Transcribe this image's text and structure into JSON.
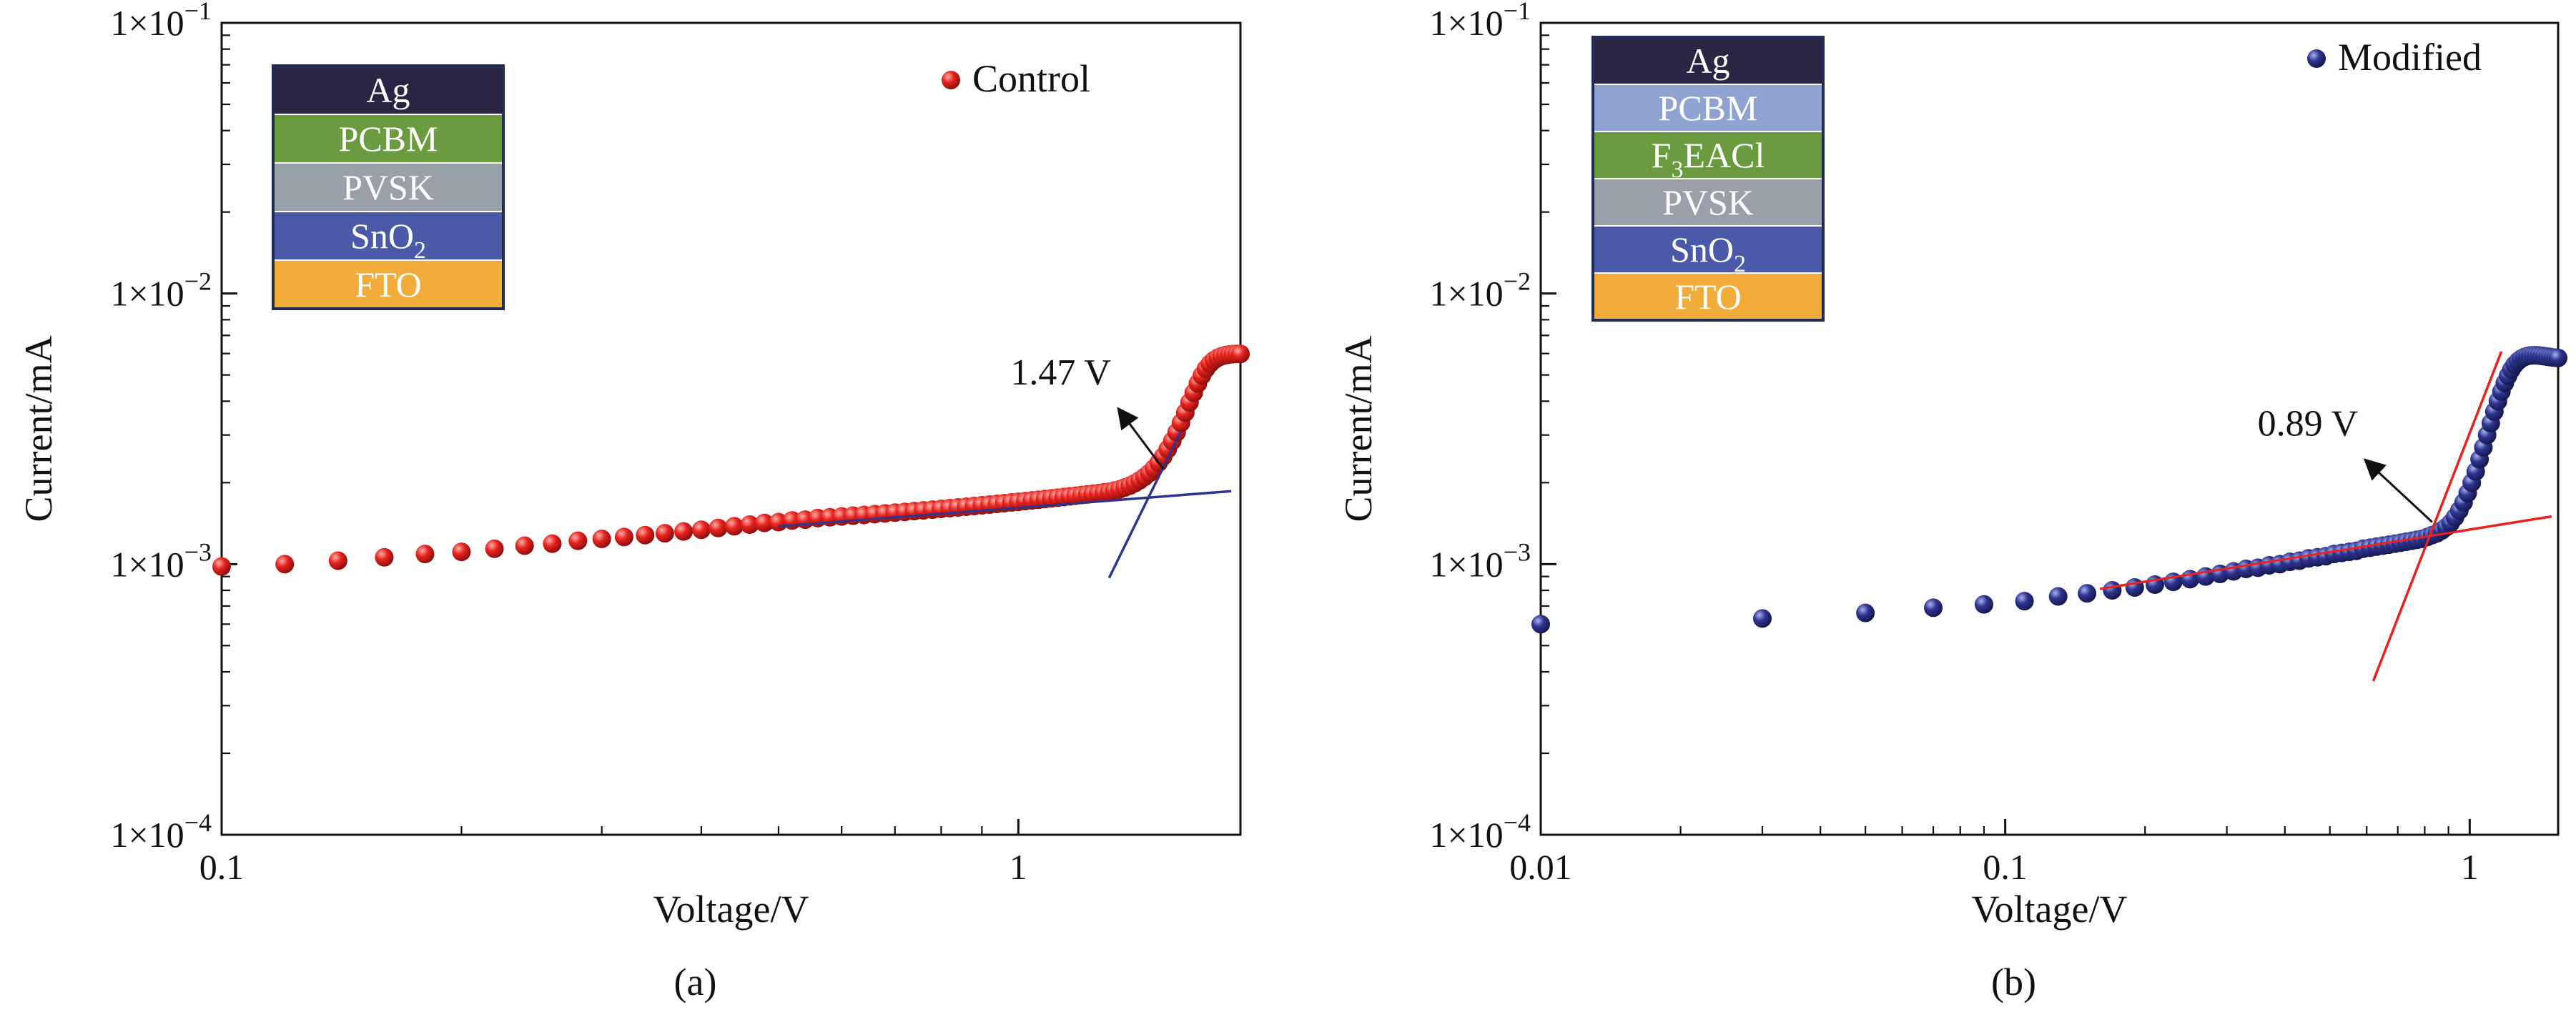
{
  "colors": {
    "control_series": "#e8231f",
    "modified_series": "#2e3590",
    "control_fit": "#2e3590",
    "modified_fit": "#e8231f",
    "stack_border": "#1f2d56",
    "arrow": "#111111"
  },
  "chart_data": [
    {
      "type": "scatter",
      "panel_label": "(a)",
      "xlabel": "Voltage/V",
      "ylabel": "Current/mA",
      "xscale": "log",
      "yscale": "log",
      "xlim": [
        0.1,
        1.9
      ],
      "ylim": [
        0.0001,
        0.1
      ],
      "xticks": [
        {
          "value": 0.1,
          "label": "0.1"
        },
        {
          "value": 1,
          "label": "1"
        }
      ],
      "yticks": [
        {
          "value": 0.0001,
          "mant": "1×10",
          "exp": "−4"
        },
        {
          "value": 0.001,
          "mant": "1×10",
          "exp": "−3"
        },
        {
          "value": 0.01,
          "mant": "1×10",
          "exp": "−2"
        },
        {
          "value": 0.1,
          "mant": "1×10",
          "exp": "−1"
        }
      ],
      "legend": {
        "label": "Control",
        "position": "top-right"
      },
      "series": [
        {
          "name": "Control",
          "marker_color_key": "control_series",
          "points": [
            [
              0.1,
              0.00098
            ],
            [
              0.12,
              0.001
            ],
            [
              0.14,
              0.00103
            ],
            [
              0.16,
              0.00106
            ],
            [
              0.18,
              0.00109
            ],
            [
              0.2,
              0.00111
            ],
            [
              0.22,
              0.00114
            ],
            [
              0.24,
              0.00117
            ],
            [
              0.26,
              0.00119
            ],
            [
              0.28,
              0.00122
            ],
            [
              0.3,
              0.00124
            ],
            [
              0.32,
              0.00126
            ],
            [
              0.34,
              0.00128
            ],
            [
              0.36,
              0.0013
            ],
            [
              0.38,
              0.00132
            ],
            [
              0.4,
              0.00134
            ],
            [
              0.42,
              0.00136
            ],
            [
              0.44,
              0.00138
            ],
            [
              0.46,
              0.0014
            ],
            [
              0.48,
              0.00142
            ],
            [
              0.5,
              0.00143
            ],
            [
              0.52,
              0.00145
            ],
            [
              0.54,
              0.00146
            ],
            [
              0.56,
              0.00148
            ],
            [
              0.58,
              0.00149
            ],
            [
              0.6,
              0.0015
            ],
            [
              0.62,
              0.00151
            ],
            [
              0.64,
              0.00152
            ],
            [
              0.66,
              0.00153
            ],
            [
              0.68,
              0.00154
            ],
            [
              0.7,
              0.00155
            ],
            [
              0.72,
              0.00156
            ],
            [
              0.74,
              0.00157
            ],
            [
              0.76,
              0.00158
            ],
            [
              0.78,
              0.00159
            ],
            [
              0.8,
              0.0016
            ],
            [
              0.82,
              0.00161
            ],
            [
              0.84,
              0.00162
            ],
            [
              0.86,
              0.00163
            ],
            [
              0.88,
              0.00164
            ],
            [
              0.9,
              0.00165
            ],
            [
              0.92,
              0.00166
            ],
            [
              0.94,
              0.00167
            ],
            [
              0.96,
              0.00168
            ],
            [
              0.98,
              0.00169
            ],
            [
              1.0,
              0.0017
            ],
            [
              1.02,
              0.00171
            ],
            [
              1.04,
              0.00172
            ],
            [
              1.06,
              0.00173
            ],
            [
              1.08,
              0.00174
            ],
            [
              1.1,
              0.00175
            ],
            [
              1.12,
              0.00176
            ],
            [
              1.14,
              0.00177
            ],
            [
              1.16,
              0.00178
            ],
            [
              1.18,
              0.00179
            ],
            [
              1.2,
              0.0018
            ],
            [
              1.22,
              0.00181
            ],
            [
              1.24,
              0.00182
            ],
            [
              1.26,
              0.00183
            ],
            [
              1.28,
              0.00184
            ],
            [
              1.3,
              0.00185
            ],
            [
              1.32,
              0.00187
            ],
            [
              1.34,
              0.00189
            ],
            [
              1.36,
              0.00192
            ],
            [
              1.38,
              0.00195
            ],
            [
              1.4,
              0.00199
            ],
            [
              1.42,
              0.00204
            ],
            [
              1.44,
              0.0021
            ],
            [
              1.46,
              0.00217
            ],
            [
              1.48,
              0.00226
            ],
            [
              1.5,
              0.00237
            ],
            [
              1.52,
              0.0025
            ],
            [
              1.54,
              0.00266
            ],
            [
              1.56,
              0.00285
            ],
            [
              1.58,
              0.00307
            ],
            [
              1.6,
              0.00333
            ],
            [
              1.62,
              0.00363
            ],
            [
              1.64,
              0.00396
            ],
            [
              1.66,
              0.0043
            ],
            [
              1.68,
              0.00465
            ],
            [
              1.7,
              0.00498
            ],
            [
              1.72,
              0.00527
            ],
            [
              1.74,
              0.0055
            ],
            [
              1.76,
              0.00567
            ],
            [
              1.78,
              0.00579
            ],
            [
              1.8,
              0.00587
            ],
            [
              1.82,
              0.00592
            ],
            [
              1.84,
              0.00595
            ],
            [
              1.86,
              0.00597
            ],
            [
              1.88,
              0.00598
            ],
            [
              1.9,
              0.00598
            ]
          ]
        }
      ],
      "fit_lines": [
        {
          "color_key": "control_fit",
          "from": [
            0.5,
            0.00138
          ],
          "to": [
            1.85,
            0.00186
          ]
        },
        {
          "color_key": "control_fit",
          "from": [
            1.3,
            0.00089
          ],
          "to": [
            1.6,
            0.0031
          ]
        }
      ],
      "annotation": {
        "text": "1.47 V",
        "arrow_from": [
          1.52,
          0.00225
        ],
        "arrow_to": [
          1.34,
          0.0037
        ]
      },
      "layer_stack": [
        {
          "label": "Ag",
          "sub": "",
          "color": "#2b2443"
        },
        {
          "label": "PCBM",
          "sub": "",
          "color": "#6a9b3f"
        },
        {
          "label": "PVSK",
          "sub": "",
          "color": "#9aa0aa"
        },
        {
          "label": "SnO",
          "sub": "2",
          "color": "#4a5aa8"
        },
        {
          "label": "FTO",
          "sub": "",
          "color": "#f2ac3a"
        }
      ]
    },
    {
      "type": "scatter",
      "panel_label": "(b)",
      "xlabel": "Voltage/V",
      "ylabel": "Current/mA",
      "xscale": "log",
      "yscale": "log",
      "xlim": [
        0.01,
        1.55
      ],
      "ylim": [
        0.0001,
        0.1
      ],
      "xticks": [
        {
          "value": 0.01,
          "label": "0.01"
        },
        {
          "value": 0.1,
          "label": "0.1"
        },
        {
          "value": 1,
          "label": "1"
        }
      ],
      "yticks": [
        {
          "value": 0.0001,
          "mant": "1×10",
          "exp": "−4"
        },
        {
          "value": 0.001,
          "mant": "1×10",
          "exp": "−3"
        },
        {
          "value": 0.01,
          "mant": "1×10",
          "exp": "−2"
        },
        {
          "value": 0.1,
          "mant": "1×10",
          "exp": "−1"
        }
      ],
      "legend": {
        "label": "Modified",
        "position": "top-right"
      },
      "series": [
        {
          "name": "Modified",
          "marker_color_key": "modified_series",
          "points": [
            [
              0.01,
              0.0006
            ],
            [
              0.03,
              0.00063
            ],
            [
              0.05,
              0.00066
            ],
            [
              0.07,
              0.00069
            ],
            [
              0.09,
              0.00071
            ],
            [
              0.11,
              0.00073
            ],
            [
              0.13,
              0.00076
            ],
            [
              0.15,
              0.00078
            ],
            [
              0.17,
              0.0008
            ],
            [
              0.19,
              0.00082
            ],
            [
              0.21,
              0.00084
            ],
            [
              0.23,
              0.00086
            ],
            [
              0.25,
              0.00088
            ],
            [
              0.27,
              0.0009
            ],
            [
              0.29,
              0.00092
            ],
            [
              0.31,
              0.00094
            ],
            [
              0.33,
              0.00096
            ],
            [
              0.35,
              0.00097
            ],
            [
              0.37,
              0.00099
            ],
            [
              0.39,
              0.001
            ],
            [
              0.41,
              0.00102
            ],
            [
              0.43,
              0.00103
            ],
            [
              0.45,
              0.00105
            ],
            [
              0.47,
              0.00106
            ],
            [
              0.49,
              0.00107
            ],
            [
              0.51,
              0.00109
            ],
            [
              0.53,
              0.0011
            ],
            [
              0.55,
              0.00111
            ],
            [
              0.57,
              0.00112
            ],
            [
              0.59,
              0.00114
            ],
            [
              0.61,
              0.00115
            ],
            [
              0.63,
              0.00116
            ],
            [
              0.65,
              0.00117
            ],
            [
              0.67,
              0.00118
            ],
            [
              0.69,
              0.00119
            ],
            [
              0.71,
              0.0012
            ],
            [
              0.73,
              0.00121
            ],
            [
              0.75,
              0.00122
            ],
            [
              0.77,
              0.00123
            ],
            [
              0.79,
              0.00124
            ],
            [
              0.81,
              0.00126
            ],
            [
              0.83,
              0.00128
            ],
            [
              0.85,
              0.0013
            ],
            [
              0.87,
              0.00133
            ],
            [
              0.89,
              0.00137
            ],
            [
              0.91,
              0.00142
            ],
            [
              0.93,
              0.00149
            ],
            [
              0.95,
              0.00158
            ],
            [
              0.97,
              0.00169
            ],
            [
              0.99,
              0.00183
            ],
            [
              1.01,
              0.002
            ],
            [
              1.03,
              0.0022
            ],
            [
              1.05,
              0.00244
            ],
            [
              1.07,
              0.0027
            ],
            [
              1.09,
              0.003
            ],
            [
              1.11,
              0.00332
            ],
            [
              1.13,
              0.00366
            ],
            [
              1.15,
              0.004
            ],
            [
              1.17,
              0.00434
            ],
            [
              1.19,
              0.00467
            ],
            [
              1.21,
              0.00497
            ],
            [
              1.23,
              0.00524
            ],
            [
              1.25,
              0.00546
            ],
            [
              1.27,
              0.00562
            ],
            [
              1.29,
              0.00574
            ],
            [
              1.31,
              0.00582
            ],
            [
              1.33,
              0.00587
            ],
            [
              1.35,
              0.0059
            ],
            [
              1.37,
              0.00591
            ],
            [
              1.39,
              0.00591
            ],
            [
              1.41,
              0.0059
            ],
            [
              1.43,
              0.00588
            ],
            [
              1.45,
              0.00586
            ],
            [
              1.47,
              0.00584
            ],
            [
              1.49,
              0.00582
            ],
            [
              1.51,
              0.0058
            ],
            [
              1.53,
              0.00579
            ],
            [
              1.55,
              0.00578
            ]
          ]
        }
      ],
      "fit_lines": [
        {
          "color_key": "modified_fit",
          "from": [
            0.16,
            0.00081
          ],
          "to": [
            1.5,
            0.0015
          ]
        },
        {
          "color_key": "modified_fit",
          "from": [
            0.62,
            0.00037
          ],
          "to": [
            1.17,
            0.0061
          ]
        }
      ],
      "annotation": {
        "text": "0.89 V",
        "arrow_from": [
          0.83,
          0.00143
        ],
        "arrow_to": [
          0.6,
          0.0024
        ]
      },
      "layer_stack": [
        {
          "label": "Ag",
          "sub": "",
          "color": "#2b2443"
        },
        {
          "label": "PCBM",
          "sub": "",
          "color": "#8fa3d3"
        },
        {
          "label": "F",
          "sub": "3",
          "tail": "EACl",
          "color": "#6a9b3f"
        },
        {
          "label": "PVSK",
          "sub": "",
          "color": "#9aa0aa"
        },
        {
          "label": "SnO",
          "sub": "2",
          "color": "#4a5aa8"
        },
        {
          "label": "FTO",
          "sub": "",
          "color": "#f2ac3a"
        }
      ]
    }
  ]
}
